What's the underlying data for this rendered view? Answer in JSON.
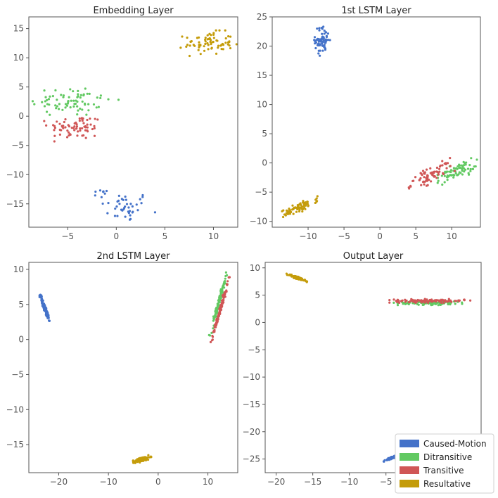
{
  "chart_data": [
    {
      "type": "scatter",
      "title": "Embedding Layer",
      "xlim": [
        -9,
        12.5
      ],
      "ylim": [
        -19,
        17
      ],
      "xticks": [
        -5,
        0,
        5,
        10
      ],
      "yticks": [
        -15,
        -10,
        -5,
        0,
        5,
        10,
        15
      ],
      "xtick_labels": [
        "−5",
        "0",
        "5",
        "10"
      ],
      "ytick_labels": [
        "−15",
        "−10",
        "−5",
        "0",
        "5",
        "10",
        "15"
      ],
      "series": [
        {
          "name": "Caused-Motion",
          "clusters": [
            {
              "cx": 1.0,
              "cy": -15.5,
              "sx": 1.3,
              "sy": 1.3,
              "rot": 0,
              "n": 40
            },
            {
              "cx": -1.6,
              "cy": -13.3,
              "sx": 0.4,
              "sy": 0.35,
              "rot": 0,
              "n": 8
            }
          ]
        },
        {
          "name": "Ditransitive",
          "clusters": [
            {
              "cx": -4.6,
              "cy": 2.6,
              "sx": 2.1,
              "sy": 1.35,
              "rot": 0,
              "n": 75
            }
          ]
        },
        {
          "name": "Transitive",
          "clusters": [
            {
              "cx": -4.2,
              "cy": -1.9,
              "sx": 1.4,
              "sy": 1.05,
              "rot": 0,
              "n": 70
            }
          ]
        },
        {
          "name": "Resultative",
          "clusters": [
            {
              "cx": 9.5,
              "cy": 12.5,
              "sx": 1.25,
              "sy": 0.95,
              "rot": 0,
              "n": 75
            }
          ]
        }
      ]
    },
    {
      "type": "scatter",
      "title": "1st LSTM Layer",
      "xlim": [
        -15,
        14
      ],
      "ylim": [
        -11,
        25
      ],
      "xticks": [
        -10,
        -5,
        0,
        5,
        10
      ],
      "yticks": [
        -10,
        -5,
        0,
        5,
        10,
        15,
        20,
        25
      ],
      "xtick_labels": [
        "−10",
        "−5",
        "0",
        "5",
        "10"
      ],
      "ytick_labels": [
        "−10",
        "−5",
        "0",
        "5",
        "10",
        "15",
        "20",
        "25"
      ],
      "series": [
        {
          "name": "Caused-Motion",
          "clusters": [
            {
              "cx": -8.0,
              "cy": 21.0,
              "sx": 0.5,
              "sy": 1.15,
              "rot": 0,
              "n": 70
            }
          ]
        },
        {
          "name": "Ditransitive",
          "clusters": [
            {
              "cx": 10.5,
              "cy": -1.6,
              "sx": 1.6,
              "sy": 0.55,
              "rot": 0.5,
              "n": 75
            }
          ]
        },
        {
          "name": "Transitive",
          "clusters": [
            {
              "cx": 7.2,
              "cy": -2.0,
              "sx": 1.7,
              "sy": 0.55,
              "rot": 0.55,
              "n": 75
            }
          ]
        },
        {
          "name": "Resultative",
          "clusters": [
            {
              "cx": -11.2,
              "cy": -7.6,
              "sx": 1.35,
              "sy": 0.35,
              "rot": 0.5,
              "n": 75
            }
          ]
        }
      ]
    },
    {
      "type": "scatter",
      "title": "2nd LSTM Layer",
      "xlim": [
        -26,
        16
      ],
      "ylim": [
        -19,
        11
      ],
      "xticks": [
        -20,
        -10,
        0,
        10
      ],
      "yticks": [
        -15,
        -10,
        -5,
        0,
        5,
        10
      ],
      "xtick_labels": [
        "−20",
        "−10",
        "0",
        "10"
      ],
      "ytick_labels": [
        "−15",
        "−10",
        "−5",
        "0",
        "5",
        "10"
      ],
      "series": [
        {
          "name": "Caused-Motion",
          "clusters": [
            {
              "cx": -22.8,
              "cy": 4.5,
              "sx": 0.9,
              "sy": 0.12,
              "rot": -1.1,
              "n": 110
            }
          ]
        },
        {
          "name": "Ditransitive",
          "clusters": [
            {
              "cx": 12.2,
              "cy": 5.3,
              "sx": 2.2,
              "sy": 0.12,
              "rot": 1.2,
              "n": 110
            }
          ]
        },
        {
          "name": "Transitive",
          "clusters": [
            {
              "cx": 12.5,
              "cy": 4.3,
              "sx": 2.2,
              "sy": 0.12,
              "rot": 1.2,
              "n": 110
            }
          ]
        },
        {
          "name": "Resultative",
          "clusters": [
            {
              "cx": -3.2,
              "cy": -17.1,
              "sx": 0.8,
              "sy": 0.15,
              "rot": 0.2,
              "n": 100
            }
          ]
        }
      ]
    },
    {
      "type": "scatter",
      "title": "Output Layer",
      "xlim": [
        -21.5,
        8
      ],
      "ylim": [
        -27.5,
        11
      ],
      "xticks": [
        -20,
        -15,
        -10,
        -5,
        0
      ],
      "yticks": [
        -25,
        -20,
        -15,
        -10,
        -5,
        0,
        5,
        10
      ],
      "xtick_labels": [
        "−20",
        "−15",
        "−10",
        "−5",
        "0"
      ],
      "ytick_labels": [
        "−25",
        "−20",
        "−15",
        "−10",
        "−5",
        "0",
        "5",
        "10"
      ],
      "series": [
        {
          "name": "Caused-Motion",
          "clusters": [
            {
              "cx": -3.8,
              "cy": -24.6,
              "sx": 0.75,
              "sy": 0.1,
              "rot": 0.5,
              "n": 110
            }
          ]
        },
        {
          "name": "Ditransitive",
          "clusters": [
            {
              "cx": 1.5,
              "cy": 3.6,
              "sx": 2.4,
              "sy": 0.18,
              "rot": 0.0,
              "n": 110
            }
          ]
        },
        {
          "name": "Transitive",
          "clusters": [
            {
              "cx": 1.0,
              "cy": 3.95,
              "sx": 2.4,
              "sy": 0.15,
              "rot": 0.0,
              "n": 110
            }
          ]
        },
        {
          "name": "Resultative",
          "clusters": [
            {
              "cx": -17.2,
              "cy": 8.2,
              "sx": 0.7,
              "sy": 0.1,
              "rot": -0.45,
              "n": 110
            }
          ]
        }
      ]
    }
  ],
  "legend": {
    "position": "bottom-right",
    "entries": [
      {
        "label": "Caused-Motion",
        "color": "#4472c9"
      },
      {
        "label": "Ditransitive",
        "color": "#62c962"
      },
      {
        "label": "Transitive",
        "color": "#d05656"
      },
      {
        "label": "Resultative",
        "color": "#c49c0a"
      }
    ]
  },
  "colors": {
    "Caused-Motion": "#4472c9",
    "Ditransitive": "#62c962",
    "Transitive": "#d05656",
    "Resultative": "#c49c0a"
  }
}
